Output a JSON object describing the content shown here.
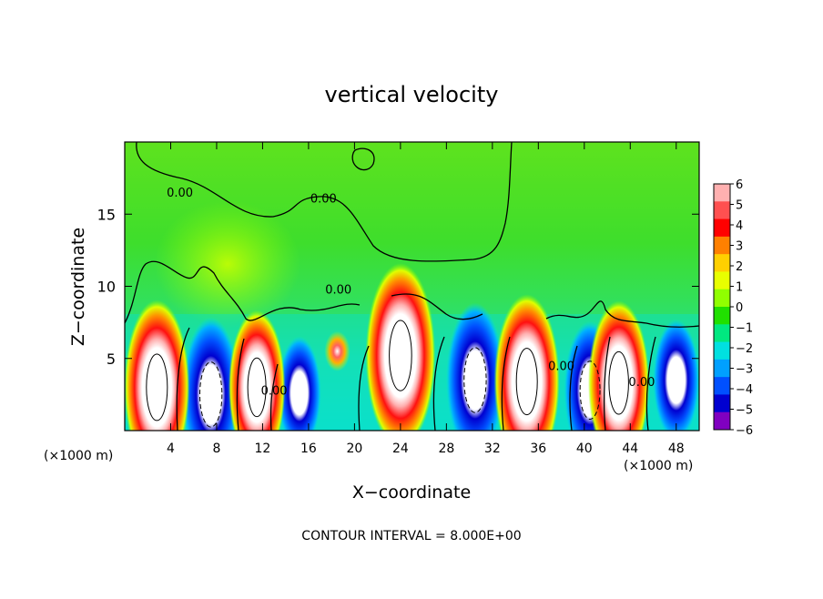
{
  "chart_data": {
    "type": "heatmap",
    "title": "vertical velocity",
    "xlabel": "X−coordinate",
    "ylabel": "Z−coordinate",
    "x_unit_left": "(×1000 m)",
    "x_unit_right": "(×1000 m)",
    "footer": "CONTOUR INTERVAL = 8.000E+00",
    "xlim": [
      0,
      50
    ],
    "ylim": [
      0,
      20
    ],
    "x_ticks": [
      4,
      8,
      12,
      16,
      20,
      24,
      28,
      32,
      36,
      40,
      44,
      48
    ],
    "x_tick_labels": [
      "4",
      "8",
      "12",
      "16",
      "20",
      "24",
      "28",
      "32",
      "36",
      "40",
      "44",
      "48"
    ],
    "y_ticks": [
      5,
      10,
      15
    ],
    "y_tick_labels": [
      "5",
      "10",
      "15"
    ],
    "colorbar": {
      "range": [
        -6,
        6
      ],
      "tick_labels": [
        "6",
        "5",
        "4",
        "3",
        "2",
        "1",
        "0",
        "−1",
        "−2",
        "−3",
        "−4",
        "−5",
        "−6"
      ],
      "colors": [
        "#ffb0b0",
        "#ff5050",
        "#ff0000",
        "#ff8000",
        "#ffd000",
        "#e8ff00",
        "#90ff00",
        "#20e000",
        "#00e880",
        "#00e0e0",
        "#00a0ff",
        "#0050ff",
        "#0000d0",
        "#8000c0"
      ]
    },
    "contour_labels": [
      {
        "text": "0.00",
        "x": 4.8,
        "z": 16.2
      },
      {
        "text": "0.00",
        "x": 17.3,
        "z": 15.8
      },
      {
        "text": "0.00",
        "x": 18.6,
        "z": 9.5
      },
      {
        "text": "0.00",
        "x": 13.0,
        "z": 2.5
      },
      {
        "text": "0.00",
        "x": 38.0,
        "z": 4.2
      },
      {
        "text": "0.00",
        "x": 45.0,
        "z": 3.1
      }
    ],
    "updrafts": [
      {
        "x": 2.8,
        "z": 3.0,
        "peak": 10
      },
      {
        "x": 11.5,
        "z": 3.0,
        "peak": 8
      },
      {
        "x": 24.0,
        "z": 5.2,
        "peak": 11
      },
      {
        "x": 35.0,
        "z": 3.4,
        "peak": 10
      },
      {
        "x": 43.0,
        "z": 3.3,
        "peak": 9
      },
      {
        "x": 18.5,
        "z": 5.5,
        "peak": 3
      }
    ],
    "downdrafts": [
      {
        "x": 7.5,
        "z": 2.5,
        "peak": -10
      },
      {
        "x": 15.2,
        "z": 2.6,
        "peak": -5
      },
      {
        "x": 30.5,
        "z": 3.5,
        "peak": -10
      },
      {
        "x": 40.5,
        "z": 2.8,
        "peak": -8
      },
      {
        "x": 48.0,
        "z": 3.5,
        "peak": -6
      }
    ]
  }
}
